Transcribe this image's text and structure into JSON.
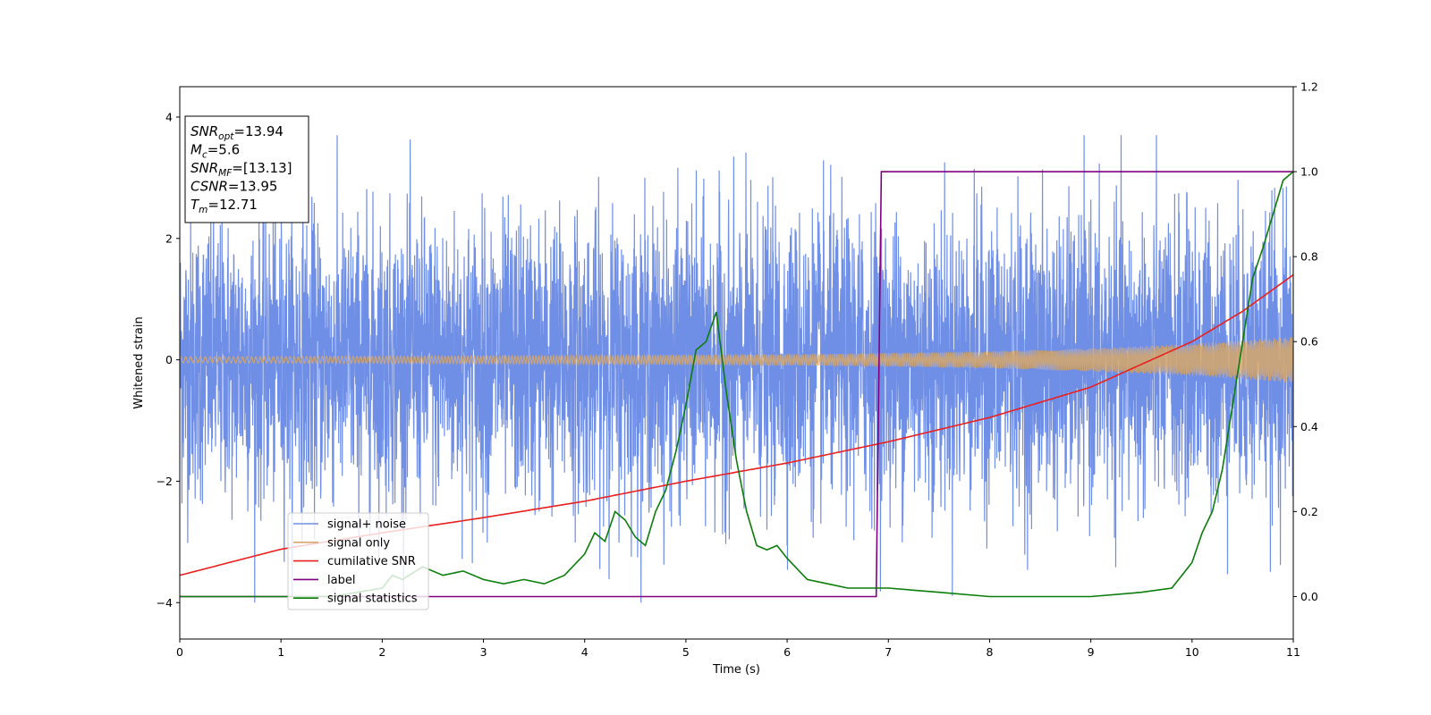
{
  "chart_data": {
    "type": "line",
    "xlabel": "Time (s)",
    "ylabel": "Whitened strain",
    "xlim": [
      0,
      11
    ],
    "ylim_left": [
      -4.6,
      4.5
    ],
    "ylim_right": [
      -0.1,
      1.2
    ],
    "x_ticks": [
      "0",
      "1",
      "2",
      "3",
      "4",
      "5",
      "6",
      "7",
      "8",
      "9",
      "10",
      "11"
    ],
    "y_ticks_left": [
      "−4",
      "−2",
      "0",
      "2",
      "4"
    ],
    "y_ticks_right": [
      "0.0",
      "0.2",
      "0.4",
      "0.6",
      "0.8",
      "1.0",
      "1.2"
    ],
    "info_box": {
      "lines": [
        {
          "main": "SNR",
          "sub": "opt",
          "rest": "=13.94"
        },
        {
          "main": "M",
          "sub": "c",
          "rest": "=5.6"
        },
        {
          "main": "SNR",
          "sub": "MF",
          "rest": "=[13.13]"
        },
        {
          "main": "CSNR",
          "sub": "",
          "rest": "=13.95"
        },
        {
          "main": "T",
          "sub": "m",
          "rest": "=12.71"
        }
      ]
    },
    "legend": {
      "position": "lower-left",
      "entries": [
        "signal+ noise",
        "signal only",
        "cumilative SNR",
        "label",
        "signal statistics"
      ]
    },
    "colors": {
      "noise": "#6f8ee6",
      "signal": "#d8a86a",
      "snr": "#e8201f",
      "label": "#800080",
      "stat": "#0a7d0a"
    },
    "series": [
      {
        "name": "signal+ noise",
        "axis": "left",
        "description_values": {
          "typical_amplitude": 1.2,
          "peak_amplitude": 3.7,
          "trough_amplitude": -4.0
        }
      },
      {
        "name": "signal only",
        "axis": "left",
        "envelope": {
          "x": [
            0,
            2,
            4,
            6,
            7,
            8,
            9,
            10,
            11
          ],
          "amp": [
            0.05,
            0.06,
            0.07,
            0.09,
            0.11,
            0.14,
            0.19,
            0.26,
            0.38
          ]
        }
      },
      {
        "name": "cumilative SNR",
        "axis": "left",
        "x": [
          0,
          1,
          2,
          3,
          4,
          5,
          6,
          7,
          8,
          9,
          10,
          10.5,
          11
        ],
        "y": [
          -3.55,
          -3.12,
          -2.85,
          -2.6,
          -2.33,
          -2.0,
          -1.7,
          -1.35,
          -0.95,
          -0.45,
          0.3,
          0.8,
          1.4
        ]
      },
      {
        "name": "label",
        "axis": "right",
        "x": [
          0,
          6.88,
          6.93,
          11
        ],
        "y": [
          0.0,
          0.0,
          1.0,
          1.0
        ]
      },
      {
        "name": "signal statistics",
        "axis": "right",
        "x": [
          0,
          0.5,
          1.0,
          1.5,
          2.0,
          2.1,
          2.2,
          2.4,
          2.6,
          2.8,
          3.0,
          3.2,
          3.4,
          3.6,
          3.8,
          4.0,
          4.1,
          4.2,
          4.3,
          4.4,
          4.5,
          4.6,
          4.7,
          4.8,
          4.9,
          5.0,
          5.1,
          5.2,
          5.3,
          5.4,
          5.5,
          5.6,
          5.7,
          5.8,
          5.9,
          6.0,
          6.2,
          6.4,
          6.6,
          6.8,
          7.0,
          7.5,
          8.0,
          8.5,
          9.0,
          9.5,
          9.8,
          9.9,
          10.0,
          10.1,
          10.2,
          10.3,
          10.4,
          10.5,
          10.6,
          10.7,
          10.8,
          10.9,
          11.0
        ],
        "y": [
          0.0,
          0.0,
          0.0,
          0.0,
          0.02,
          0.05,
          0.04,
          0.07,
          0.05,
          0.06,
          0.04,
          0.03,
          0.04,
          0.03,
          0.05,
          0.1,
          0.15,
          0.13,
          0.2,
          0.18,
          0.14,
          0.12,
          0.2,
          0.25,
          0.34,
          0.45,
          0.58,
          0.6,
          0.67,
          0.48,
          0.32,
          0.2,
          0.12,
          0.11,
          0.12,
          0.09,
          0.04,
          0.03,
          0.02,
          0.02,
          0.02,
          0.01,
          0.0,
          0.0,
          0.0,
          0.01,
          0.02,
          0.05,
          0.08,
          0.15,
          0.2,
          0.3,
          0.45,
          0.6,
          0.75,
          0.82,
          0.9,
          0.98,
          1.0
        ]
      }
    ]
  }
}
